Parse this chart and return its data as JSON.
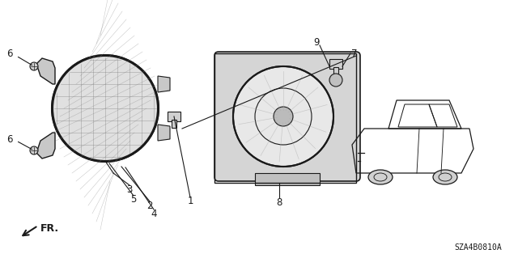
{
  "title": "",
  "background_color": "#ffffff",
  "diagram_code": "SZA4B0810A",
  "fr_label": "FR.",
  "part_numbers": {
    "left_foglight": [
      "6",
      "6",
      "3",
      "5",
      "2",
      "4",
      "1"
    ],
    "right_foglight": [
      "9",
      "7",
      "8"
    ],
    "connector": "1"
  },
  "line_color": "#1a1a1a",
  "text_color": "#1a1a1a",
  "light_gray": "#cccccc",
  "dark_gray": "#555555",
  "hatch_color": "#999999"
}
